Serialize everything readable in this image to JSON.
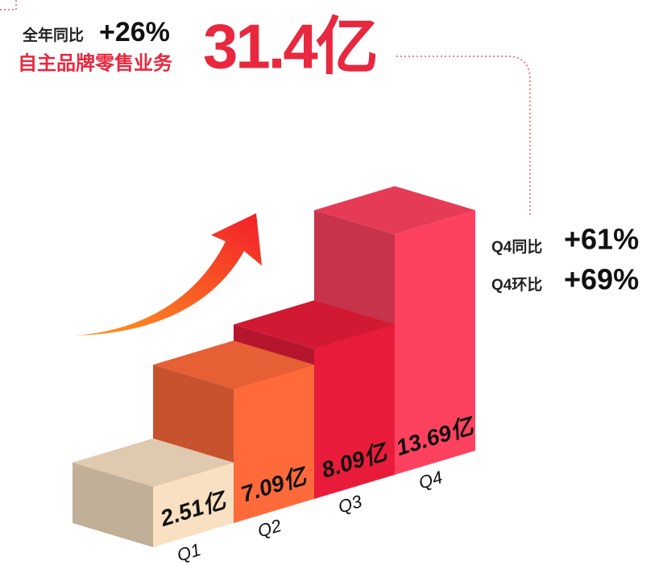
{
  "chart_data": {
    "type": "bar3d",
    "categories": [
      "Q1",
      "Q2",
      "Q3",
      "Q4"
    ],
    "values": [
      2.51,
      7.09,
      8.09,
      13.69
    ],
    "value_labels": [
      "2.51亿",
      "7.09亿",
      "8.09亿",
      "13.69亿"
    ],
    "colors": [
      "#f9e0c2",
      "#ff6a3b",
      "#e81c3a",
      "#ff4160"
    ],
    "annotations": [
      "全年同比",
      "+26%",
      "自主品牌零售业务",
      "31.4亿",
      "Q4同比",
      "+61%",
      "Q4环比",
      "+69%"
    ]
  }
}
